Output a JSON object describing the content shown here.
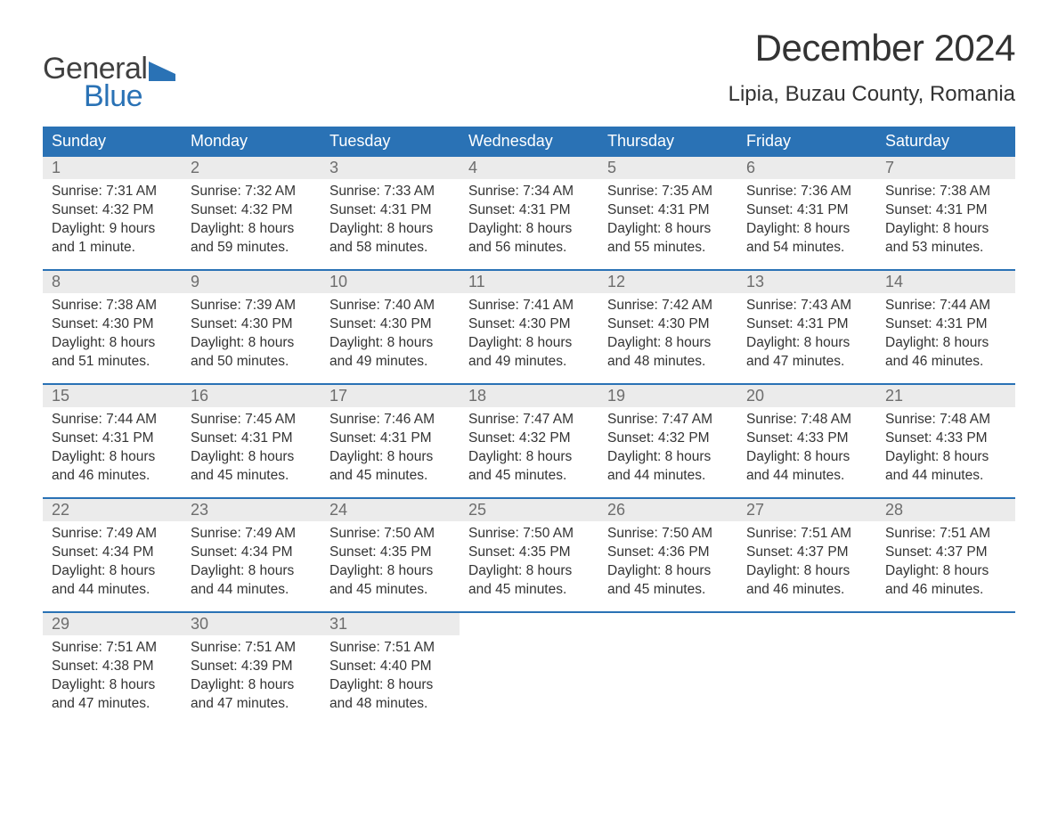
{
  "logo": {
    "text_top": "General",
    "text_bottom": "Blue",
    "flag_color": "#2a72b5",
    "top_color": "#404040"
  },
  "title": "December 2024",
  "location": "Lipia, Buzau County, Romania",
  "header_bg": "#2a72b5",
  "header_fg": "#ffffff",
  "row_border": "#2a72b5",
  "daynum_bg": "#ebebeb",
  "daynum_fg": "#6d6d6d",
  "body_fg": "#333333",
  "day_names": [
    "Sunday",
    "Monday",
    "Tuesday",
    "Wednesday",
    "Thursday",
    "Friday",
    "Saturday"
  ],
  "weeks": [
    [
      {
        "n": "1",
        "sunrise": "Sunrise: 7:31 AM",
        "sunset": "Sunset: 4:32 PM",
        "d1": "Daylight: 9 hours",
        "d2": "and 1 minute."
      },
      {
        "n": "2",
        "sunrise": "Sunrise: 7:32 AM",
        "sunset": "Sunset: 4:32 PM",
        "d1": "Daylight: 8 hours",
        "d2": "and 59 minutes."
      },
      {
        "n": "3",
        "sunrise": "Sunrise: 7:33 AM",
        "sunset": "Sunset: 4:31 PM",
        "d1": "Daylight: 8 hours",
        "d2": "and 58 minutes."
      },
      {
        "n": "4",
        "sunrise": "Sunrise: 7:34 AM",
        "sunset": "Sunset: 4:31 PM",
        "d1": "Daylight: 8 hours",
        "d2": "and 56 minutes."
      },
      {
        "n": "5",
        "sunrise": "Sunrise: 7:35 AM",
        "sunset": "Sunset: 4:31 PM",
        "d1": "Daylight: 8 hours",
        "d2": "and 55 minutes."
      },
      {
        "n": "6",
        "sunrise": "Sunrise: 7:36 AM",
        "sunset": "Sunset: 4:31 PM",
        "d1": "Daylight: 8 hours",
        "d2": "and 54 minutes."
      },
      {
        "n": "7",
        "sunrise": "Sunrise: 7:38 AM",
        "sunset": "Sunset: 4:31 PM",
        "d1": "Daylight: 8 hours",
        "d2": "and 53 minutes."
      }
    ],
    [
      {
        "n": "8",
        "sunrise": "Sunrise: 7:38 AM",
        "sunset": "Sunset: 4:30 PM",
        "d1": "Daylight: 8 hours",
        "d2": "and 51 minutes."
      },
      {
        "n": "9",
        "sunrise": "Sunrise: 7:39 AM",
        "sunset": "Sunset: 4:30 PM",
        "d1": "Daylight: 8 hours",
        "d2": "and 50 minutes."
      },
      {
        "n": "10",
        "sunrise": "Sunrise: 7:40 AM",
        "sunset": "Sunset: 4:30 PM",
        "d1": "Daylight: 8 hours",
        "d2": "and 49 minutes."
      },
      {
        "n": "11",
        "sunrise": "Sunrise: 7:41 AM",
        "sunset": "Sunset: 4:30 PM",
        "d1": "Daylight: 8 hours",
        "d2": "and 49 minutes."
      },
      {
        "n": "12",
        "sunrise": "Sunrise: 7:42 AM",
        "sunset": "Sunset: 4:30 PM",
        "d1": "Daylight: 8 hours",
        "d2": "and 48 minutes."
      },
      {
        "n": "13",
        "sunrise": "Sunrise: 7:43 AM",
        "sunset": "Sunset: 4:31 PM",
        "d1": "Daylight: 8 hours",
        "d2": "and 47 minutes."
      },
      {
        "n": "14",
        "sunrise": "Sunrise: 7:44 AM",
        "sunset": "Sunset: 4:31 PM",
        "d1": "Daylight: 8 hours",
        "d2": "and 46 minutes."
      }
    ],
    [
      {
        "n": "15",
        "sunrise": "Sunrise: 7:44 AM",
        "sunset": "Sunset: 4:31 PM",
        "d1": "Daylight: 8 hours",
        "d2": "and 46 minutes."
      },
      {
        "n": "16",
        "sunrise": "Sunrise: 7:45 AM",
        "sunset": "Sunset: 4:31 PM",
        "d1": "Daylight: 8 hours",
        "d2": "and 45 minutes."
      },
      {
        "n": "17",
        "sunrise": "Sunrise: 7:46 AM",
        "sunset": "Sunset: 4:31 PM",
        "d1": "Daylight: 8 hours",
        "d2": "and 45 minutes."
      },
      {
        "n": "18",
        "sunrise": "Sunrise: 7:47 AM",
        "sunset": "Sunset: 4:32 PM",
        "d1": "Daylight: 8 hours",
        "d2": "and 45 minutes."
      },
      {
        "n": "19",
        "sunrise": "Sunrise: 7:47 AM",
        "sunset": "Sunset: 4:32 PM",
        "d1": "Daylight: 8 hours",
        "d2": "and 44 minutes."
      },
      {
        "n": "20",
        "sunrise": "Sunrise: 7:48 AM",
        "sunset": "Sunset: 4:33 PM",
        "d1": "Daylight: 8 hours",
        "d2": "and 44 minutes."
      },
      {
        "n": "21",
        "sunrise": "Sunrise: 7:48 AM",
        "sunset": "Sunset: 4:33 PM",
        "d1": "Daylight: 8 hours",
        "d2": "and 44 minutes."
      }
    ],
    [
      {
        "n": "22",
        "sunrise": "Sunrise: 7:49 AM",
        "sunset": "Sunset: 4:34 PM",
        "d1": "Daylight: 8 hours",
        "d2": "and 44 minutes."
      },
      {
        "n": "23",
        "sunrise": "Sunrise: 7:49 AM",
        "sunset": "Sunset: 4:34 PM",
        "d1": "Daylight: 8 hours",
        "d2": "and 44 minutes."
      },
      {
        "n": "24",
        "sunrise": "Sunrise: 7:50 AM",
        "sunset": "Sunset: 4:35 PM",
        "d1": "Daylight: 8 hours",
        "d2": "and 45 minutes."
      },
      {
        "n": "25",
        "sunrise": "Sunrise: 7:50 AM",
        "sunset": "Sunset: 4:35 PM",
        "d1": "Daylight: 8 hours",
        "d2": "and 45 minutes."
      },
      {
        "n": "26",
        "sunrise": "Sunrise: 7:50 AM",
        "sunset": "Sunset: 4:36 PM",
        "d1": "Daylight: 8 hours",
        "d2": "and 45 minutes."
      },
      {
        "n": "27",
        "sunrise": "Sunrise: 7:51 AM",
        "sunset": "Sunset: 4:37 PM",
        "d1": "Daylight: 8 hours",
        "d2": "and 46 minutes."
      },
      {
        "n": "28",
        "sunrise": "Sunrise: 7:51 AM",
        "sunset": "Sunset: 4:37 PM",
        "d1": "Daylight: 8 hours",
        "d2": "and 46 minutes."
      }
    ],
    [
      {
        "n": "29",
        "sunrise": "Sunrise: 7:51 AM",
        "sunset": "Sunset: 4:38 PM",
        "d1": "Daylight: 8 hours",
        "d2": "and 47 minutes."
      },
      {
        "n": "30",
        "sunrise": "Sunrise: 7:51 AM",
        "sunset": "Sunset: 4:39 PM",
        "d1": "Daylight: 8 hours",
        "d2": "and 47 minutes."
      },
      {
        "n": "31",
        "sunrise": "Sunrise: 7:51 AM",
        "sunset": "Sunset: 4:40 PM",
        "d1": "Daylight: 8 hours",
        "d2": "and 48 minutes."
      },
      null,
      null,
      null,
      null
    ]
  ]
}
